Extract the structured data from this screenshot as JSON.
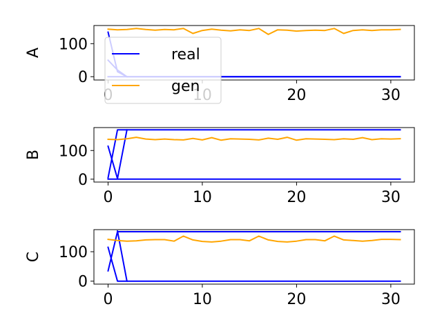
{
  "chart_data": [
    {
      "type": "line",
      "ylabel": "A",
      "xlim": [
        -1.5,
        32.5
      ],
      "ylim": [
        -10,
        155
      ],
      "xticks": [
        0,
        10,
        20,
        30
      ],
      "yticks": [
        0,
        100
      ],
      "legend": {
        "placement": "top-left",
        "entries": [
          "real",
          "gen"
        ]
      },
      "series": [
        {
          "name": "real",
          "color": "#0000ff",
          "lines": [
            {
              "x": [
                0,
                1,
                2,
                31
              ],
              "y": [
                135,
                15,
                0,
                0
              ]
            },
            {
              "x": [
                0,
                1,
                2
              ],
              "y": [
                50,
                20,
                0
              ]
            },
            {
              "x": [
                0,
                31
              ],
              "y": [
                0,
                0
              ]
            }
          ]
        },
        {
          "name": "gen",
          "color": "#ffa500",
          "lines": [
            {
              "x": [
                0,
                1,
                2,
                3,
                4,
                5,
                6,
                7,
                8,
                9,
                10,
                11,
                12,
                13,
                14,
                15,
                16,
                17,
                18,
                19,
                20,
                21,
                22,
                23,
                24,
                25,
                26,
                27,
                28,
                29,
                30,
                31
              ],
              "y": [
                144,
                142,
                143,
                146,
                143,
                141,
                143,
                142,
                146,
                131,
                140,
                144,
                141,
                139,
                142,
                140,
                146,
                128,
                142,
                141,
                138,
                140,
                141,
                140,
                146,
                131,
                140,
                142,
                140,
                142,
                142,
                143
              ]
            }
          ]
        }
      ]
    },
    {
      "type": "line",
      "ylabel": "B",
      "xlim": [
        -1.5,
        32.5
      ],
      "ylim": [
        -10,
        180
      ],
      "xticks": [
        0,
        10,
        20,
        30
      ],
      "yticks": [
        0,
        100
      ],
      "series": [
        {
          "name": "real",
          "color": "#0000ff",
          "lines": [
            {
              "x": [
                0,
                1,
                31
              ],
              "y": [
                5,
                172,
                172
              ]
            },
            {
              "x": [
                0,
                1,
                2
              ],
              "y": [
                115,
                2,
                172
              ]
            },
            {
              "x": [
                0,
                31
              ],
              "y": [
                0,
                0
              ]
            }
          ]
        },
        {
          "name": "gen",
          "color": "#ffa500",
          "lines": [
            {
              "x": [
                0,
                1,
                2,
                3,
                4,
                5,
                6,
                7,
                8,
                9,
                10,
                11,
                12,
                13,
                14,
                15,
                16,
                17,
                18,
                19,
                20,
                21,
                22,
                23,
                24,
                25,
                26,
                27,
                28,
                29,
                30,
                31
              ],
              "y": [
                139,
                138,
                141,
                146,
                140,
                138,
                140,
                138,
                137,
                142,
                137,
                145,
                136,
                141,
                140,
                139,
                137,
                143,
                139,
                146,
                136,
                141,
                140,
                139,
                138,
                141,
                139,
                145,
                138,
                141,
                140,
                141
              ]
            }
          ]
        }
      ]
    },
    {
      "type": "line",
      "ylabel": "C",
      "xlim": [
        -1.5,
        32.5
      ],
      "ylim": [
        -10,
        175
      ],
      "xticks": [
        0,
        10,
        20,
        30
      ],
      "yticks": [
        0,
        100
      ],
      "series": [
        {
          "name": "real",
          "color": "#0000ff",
          "lines": [
            {
              "x": [
                0,
                1,
                31
              ],
              "y": [
                35,
                168,
                168
              ]
            },
            {
              "x": [
                0,
                1,
                2
              ],
              "y": [
                115,
                0,
                0
              ]
            },
            {
              "x": [
                1,
                2,
                31
              ],
              "y": [
                170,
                0,
                0
              ]
            }
          ]
        },
        {
          "name": "gen",
          "color": "#ffa500",
          "lines": [
            {
              "x": [
                0,
                1,
                2,
                3,
                4,
                5,
                6,
                7,
                8,
                9,
                10,
                11,
                12,
                13,
                14,
                15,
                16,
                17,
                18,
                19,
                20,
                21,
                22,
                23,
                24,
                25,
                26,
                27,
                28,
                29,
                30,
                31
              ],
              "y": [
                142,
                138,
                136,
                137,
                140,
                141,
                141,
                136,
                153,
                140,
                135,
                133,
                136,
                141,
                141,
                137,
                153,
                140,
                135,
                133,
                136,
                141,
                141,
                137,
                153,
                140,
                138,
                136,
                138,
                142,
                142,
                141
              ]
            }
          ]
        }
      ]
    }
  ]
}
